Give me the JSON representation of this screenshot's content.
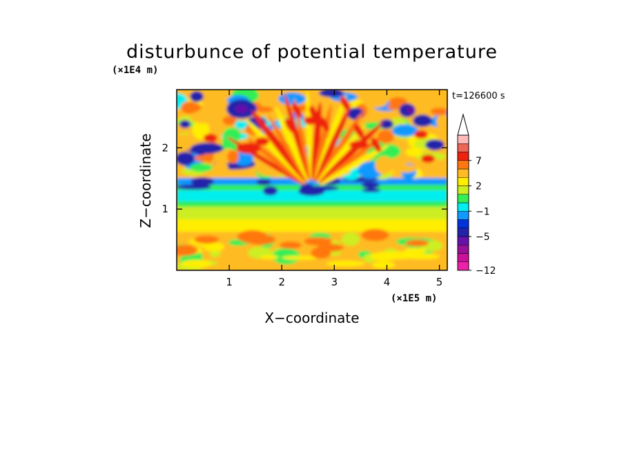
{
  "chart_data": {
    "type": "heatmap",
    "title": "disturbunce of potential temperature",
    "xlabel": "X−coordinate",
    "ylabel": "Z−coordinate",
    "x_unit": "(×1E5 m)",
    "y_unit": "(×1E4 m)",
    "time_label": "t=126600 s",
    "xlim": [
      0,
      5.15
    ],
    "ylim": [
      0,
      2.95
    ],
    "x_ticks": [
      {
        "value": 1,
        "label": "1"
      },
      {
        "value": 2,
        "label": "2"
      },
      {
        "value": 3,
        "label": "3"
      },
      {
        "value": 4,
        "label": "4"
      },
      {
        "value": 5,
        "label": "5"
      }
    ],
    "y_ticks": [
      {
        "value": 1,
        "label": "1"
      },
      {
        "value": 2,
        "label": "2"
      }
    ],
    "colorbar": {
      "levels": [
        -12,
        -10,
        -8,
        -6,
        -5,
        -4,
        -3,
        -1,
        0,
        1,
        2,
        4,
        5,
        7,
        9,
        11
      ],
      "colors": [
        "#ee22aa",
        "#cc1199",
        "#991199",
        "#6611aa",
        "#2222aa",
        "#0033dd",
        "#1199ff",
        "#00eeee",
        "#33ee55",
        "#ccee22",
        "#ffee00",
        "#ffbb22",
        "#ff7711",
        "#ee2211",
        "#ee6655",
        "#ffbbbb"
      ],
      "labeled_ticks": [
        {
          "value": -12,
          "label": "−12"
        },
        {
          "value": -5,
          "label": "−5"
        },
        {
          "value": -1,
          "label": "−1"
        },
        {
          "value": 2,
          "label": "2"
        },
        {
          "value": 7,
          "label": "7"
        }
      ],
      "extend": "max"
    },
    "grid": false,
    "legend": "right"
  }
}
